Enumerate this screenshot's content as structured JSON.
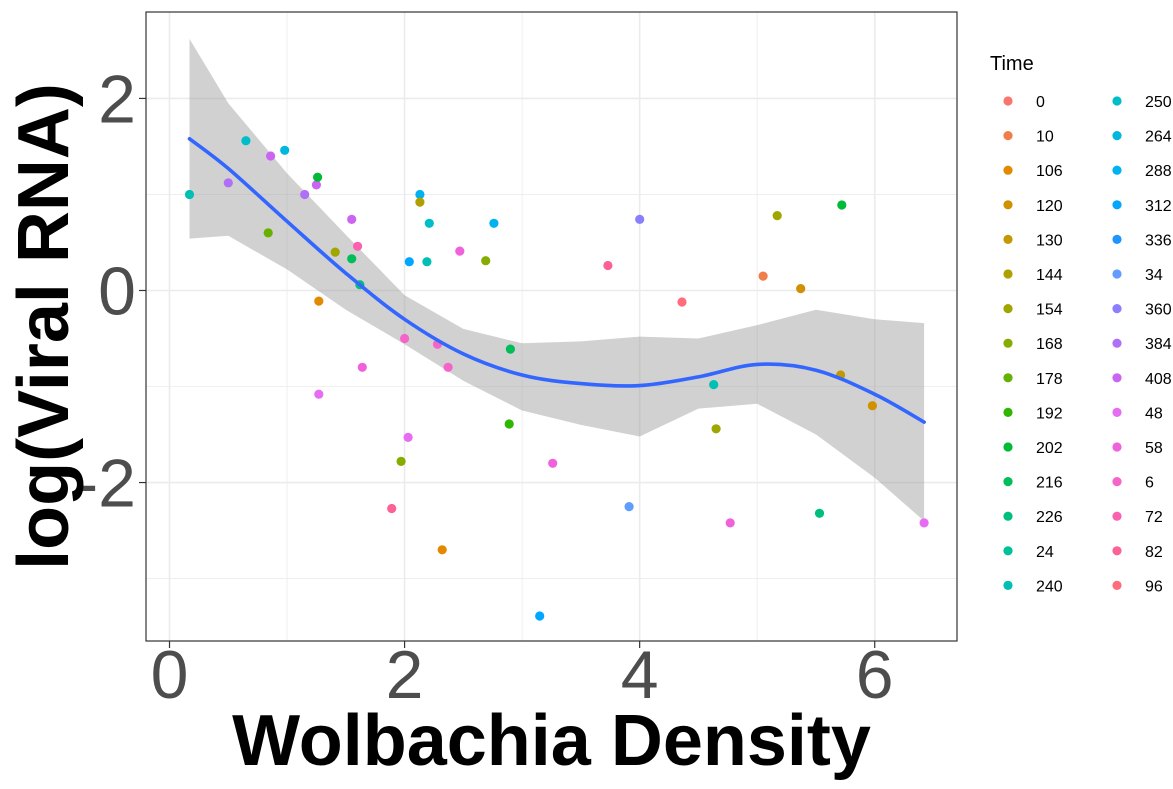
{
  "chart_data": {
    "type": "scatter",
    "title": "",
    "xlabel": "Wolbachia Density",
    "ylabel": "log(Viral RNA)",
    "xlim": [
      -0.2,
      6.7
    ],
    "ylim": [
      -3.65,
      2.9
    ],
    "x_ticks": [
      0,
      2,
      4,
      6
    ],
    "y_ticks": [
      -2,
      0,
      2
    ],
    "grid": true,
    "legend_position": "right",
    "legend": {
      "title": "Time",
      "entries": [
        {
          "label": "0",
          "color": "#F8766D"
        },
        {
          "label": "10",
          "color": "#F07E4B"
        },
        {
          "label": "106",
          "color": "#E38900"
        },
        {
          "label": "120",
          "color": "#D09000"
        },
        {
          "label": "130",
          "color": "#C29A00"
        },
        {
          "label": "144",
          "color": "#B09F00"
        },
        {
          "label": "154",
          "color": "#9FA600"
        },
        {
          "label": "168",
          "color": "#86AC00"
        },
        {
          "label": "178",
          "color": "#66B100"
        },
        {
          "label": "192",
          "color": "#2FB600"
        },
        {
          "label": "202",
          "color": "#00BA38"
        },
        {
          "label": "216",
          "color": "#00BC59"
        },
        {
          "label": "226",
          "color": "#00BF7D"
        },
        {
          "label": "24",
          "color": "#00C097"
        },
        {
          "label": "240",
          "color": "#00C0B4"
        },
        {
          "label": "250",
          "color": "#00BDCA"
        },
        {
          "label": "264",
          "color": "#00B8DE"
        },
        {
          "label": "288",
          "color": "#00B2EF"
        },
        {
          "label": "312",
          "color": "#00A6FF"
        },
        {
          "label": "336",
          "color": "#1E96FF"
        },
        {
          "label": "34",
          "color": "#619CFF"
        },
        {
          "label": "360",
          "color": "#8B7FFF"
        },
        {
          "label": "384",
          "color": "#B06FF7"
        },
        {
          "label": "408",
          "color": "#CB64F2"
        },
        {
          "label": "48",
          "color": "#E76BF3"
        },
        {
          "label": "58",
          "color": "#F062DC"
        },
        {
          "label": "6",
          "color": "#F564C9"
        },
        {
          "label": "72",
          "color": "#FB61B0"
        },
        {
          "label": "82",
          "color": "#FD6294"
        },
        {
          "label": "96",
          "color": "#FF6C7B"
        }
      ]
    },
    "points": [
      {
        "x": 0.17,
        "y": 1.0,
        "time": "240"
      },
      {
        "x": 0.5,
        "y": 1.12,
        "time": "384"
      },
      {
        "x": 0.65,
        "y": 1.56,
        "time": "250"
      },
      {
        "x": 0.84,
        "y": 0.6,
        "time": "178"
      },
      {
        "x": 0.86,
        "y": 1.4,
        "time": "408"
      },
      {
        "x": 0.98,
        "y": 1.46,
        "time": "264"
      },
      {
        "x": 1.15,
        "y": 1.0,
        "time": "384"
      },
      {
        "x": 1.25,
        "y": 1.1,
        "time": "408"
      },
      {
        "x": 1.26,
        "y": 1.18,
        "time": "202"
      },
      {
        "x": 1.27,
        "y": -0.11,
        "time": "106"
      },
      {
        "x": 1.27,
        "y": -1.08,
        "time": "48"
      },
      {
        "x": 1.41,
        "y": 0.4,
        "time": "154"
      },
      {
        "x": 1.55,
        "y": 0.74,
        "time": "408"
      },
      {
        "x": 1.55,
        "y": 0.33,
        "time": "216"
      },
      {
        "x": 1.6,
        "y": 0.46,
        "time": "72"
      },
      {
        "x": 1.62,
        "y": 0.06,
        "time": "226"
      },
      {
        "x": 1.64,
        "y": -0.8,
        "time": "58"
      },
      {
        "x": 1.89,
        "y": -2.27,
        "time": "82"
      },
      {
        "x": 1.97,
        "y": -1.78,
        "time": "168"
      },
      {
        "x": 2.0,
        "y": -0.5,
        "time": "6"
      },
      {
        "x": 2.03,
        "y": -1.53,
        "time": "48"
      },
      {
        "x": 2.04,
        "y": 0.3,
        "time": "312"
      },
      {
        "x": 2.13,
        "y": 1.0,
        "time": "288"
      },
      {
        "x": 2.13,
        "y": 0.92,
        "time": "144"
      },
      {
        "x": 2.19,
        "y": 0.3,
        "time": "240"
      },
      {
        "x": 2.21,
        "y": 0.7,
        "time": "250"
      },
      {
        "x": 2.28,
        "y": -0.56,
        "time": "6"
      },
      {
        "x": 2.32,
        "y": -2.7,
        "time": "106"
      },
      {
        "x": 2.37,
        "y": -0.8,
        "time": "6"
      },
      {
        "x": 2.47,
        "y": 0.41,
        "time": "58"
      },
      {
        "x": 2.69,
        "y": 0.31,
        "time": "168"
      },
      {
        "x": 2.76,
        "y": 0.7,
        "time": "288"
      },
      {
        "x": 2.89,
        "y": -1.39,
        "time": "192"
      },
      {
        "x": 2.9,
        "y": -0.61,
        "time": "216"
      },
      {
        "x": 3.15,
        "y": -3.39,
        "time": "312"
      },
      {
        "x": 3.26,
        "y": -1.8,
        "time": "58"
      },
      {
        "x": 3.73,
        "y": 0.26,
        "time": "82"
      },
      {
        "x": 3.91,
        "y": -2.25,
        "time": "34"
      },
      {
        "x": 4.0,
        "y": 0.74,
        "time": "360"
      },
      {
        "x": 4.36,
        "y": -0.12,
        "time": "96"
      },
      {
        "x": 4.63,
        "y": -0.98,
        "time": "240"
      },
      {
        "x": 4.65,
        "y": -1.44,
        "time": "154"
      },
      {
        "x": 4.77,
        "y": -2.42,
        "time": "58"
      },
      {
        "x": 5.05,
        "y": 0.15,
        "time": "10"
      },
      {
        "x": 5.17,
        "y": 0.78,
        "time": "154"
      },
      {
        "x": 5.37,
        "y": 0.02,
        "time": "120"
      },
      {
        "x": 5.53,
        "y": -2.32,
        "time": "226"
      },
      {
        "x": 5.72,
        "y": 0.89,
        "time": "202"
      },
      {
        "x": 5.71,
        "y": -0.88,
        "time": "130"
      },
      {
        "x": 5.98,
        "y": -1.2,
        "time": "120"
      },
      {
        "x": 6.42,
        "y": -2.42,
        "time": "48"
      }
    ],
    "smooth": {
      "name": "loess",
      "color": "#3366FF",
      "ribbon_color": "#999999",
      "x": [
        0.17,
        0.5,
        1.0,
        1.5,
        2.0,
        2.5,
        3.0,
        3.5,
        4.0,
        4.5,
        5.0,
        5.5,
        6.0,
        6.42
      ],
      "y": [
        1.58,
        1.27,
        0.72,
        0.18,
        -0.3,
        -0.66,
        -0.88,
        -0.97,
        -0.99,
        -0.9,
        -0.77,
        -0.83,
        -1.08,
        -1.37
      ],
      "lower": [
        0.54,
        0.57,
        0.22,
        -0.2,
        -0.56,
        -0.94,
        -1.25,
        -1.4,
        -1.52,
        -1.23,
        -1.18,
        -1.5,
        -1.95,
        -2.4
      ],
      "upper": [
        2.62,
        1.95,
        1.22,
        0.58,
        -0.05,
        -0.4,
        -0.55,
        -0.53,
        -0.48,
        -0.5,
        -0.36,
        -0.2,
        -0.3,
        -0.34
      ]
    }
  }
}
